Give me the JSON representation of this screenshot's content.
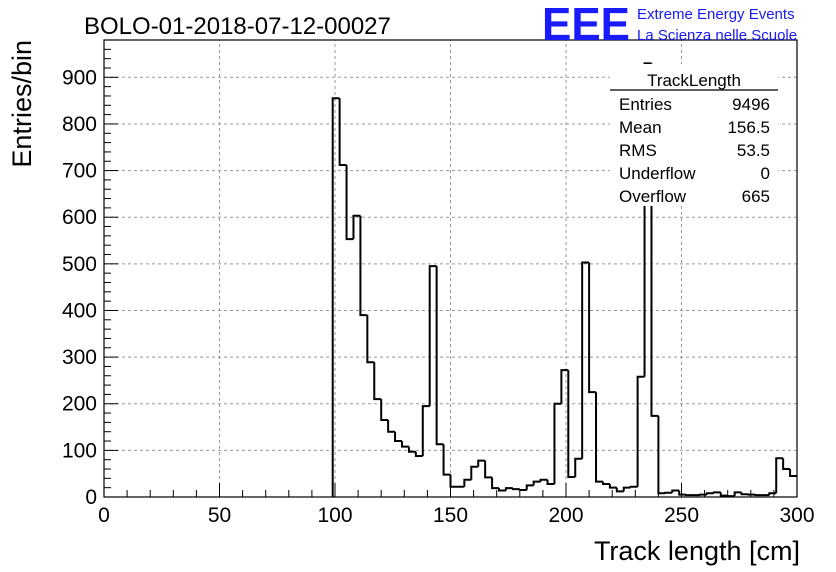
{
  "header": {
    "run_title": "BOLO-01-2018-07-12-00027",
    "logo_mark": "EEE",
    "logo_line1": "Extreme Energy Events",
    "logo_line2": "La Scienza nelle Scuole"
  },
  "stats_box": {
    "title": "TrackLength",
    "rows": [
      {
        "label": "Entries",
        "value": "9496"
      },
      {
        "label": "Mean",
        "value": "156.5"
      },
      {
        "label": "RMS",
        "value": "53.5"
      },
      {
        "label": "Underflow",
        "value": "0"
      },
      {
        "label": "Overflow",
        "value": "665"
      }
    ]
  },
  "colors": {
    "logo": "#1a1aff",
    "line": "#000000",
    "grid": "#999999"
  },
  "chart_data": {
    "type": "bar",
    "style": "step-histogram",
    "xlabel": "Track length [cm]",
    "ylabel": "Entries/bin",
    "xlim": [
      0,
      300
    ],
    "ylim": [
      0,
      980
    ],
    "bin_width": 3,
    "grid": true,
    "xticks": [
      "0",
      "50",
      "100",
      "150",
      "200",
      "250",
      "300"
    ],
    "yticks": [
      "0",
      "100",
      "200",
      "300",
      "400",
      "500",
      "600",
      "700",
      "800",
      "900"
    ],
    "bin_low_edges": [
      99,
      102,
      105,
      108,
      111,
      114,
      117,
      120,
      123,
      126,
      129,
      132,
      135,
      138,
      141,
      144,
      147,
      150,
      153,
      156,
      159,
      162,
      165,
      168,
      171,
      174,
      177,
      180,
      183,
      186,
      189,
      192,
      195,
      198,
      201,
      204,
      207,
      210,
      213,
      216,
      219,
      222,
      225,
      228,
      231,
      234,
      237,
      240,
      243,
      246,
      249,
      252,
      255,
      258,
      261,
      264,
      267,
      270,
      273,
      276,
      279,
      282,
      285,
      288,
      291,
      294,
      297
    ],
    "values": [
      855,
      712,
      553,
      603,
      390,
      289,
      210,
      165,
      140,
      120,
      108,
      97,
      88,
      195,
      495,
      113,
      48,
      22,
      22,
      37,
      65,
      78,
      42,
      19,
      14,
      19,
      17,
      15,
      25,
      33,
      37,
      28,
      200,
      272,
      43,
      82,
      503,
      225,
      33,
      28,
      20,
      12,
      20,
      22,
      258,
      930,
      174,
      8,
      9,
      14,
      5,
      4,
      4,
      5,
      8,
      10,
      3,
      2,
      10,
      6,
      5,
      4,
      4,
      8,
      83,
      60,
      45
    ]
  }
}
